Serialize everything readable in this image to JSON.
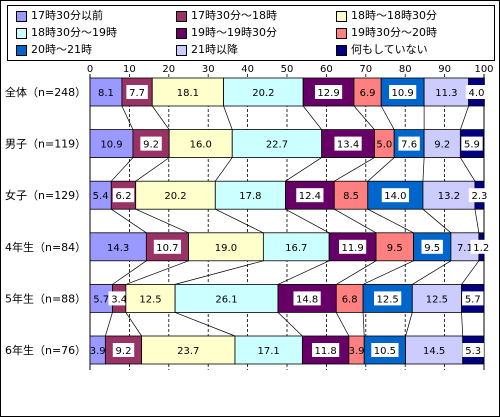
{
  "chart_data": {
    "type": "bar",
    "orientation": "horizontal",
    "stacked": true,
    "categories": [
      "全体（n=248）",
      "男子（n=119）",
      "女子（n=129）",
      "4年生（n=84）",
      "5年生（n=88）",
      "6年生（n=76）"
    ],
    "category_labels": [
      "全体（n=248）",
      "男子（n=119）",
      "女子（n=129）",
      "4年生（n=84）",
      "5年生（n=88）",
      "6年生（n=76）"
    ],
    "xlim": [
      0,
      100
    ],
    "xticks": [
      "0",
      "10",
      "20",
      "30",
      "40",
      "50",
      "60",
      "70",
      "80",
      "90",
      "100"
    ],
    "grid": "vertical-dashed",
    "legend_position": "top",
    "series": [
      {
        "name": "17時30分以前",
        "color": "#9999ff",
        "values": [
          8.1,
          10.9,
          5.4,
          14.3,
          5.7,
          3.9
        ],
        "labels": [
          "8.1",
          "10.9",
          "5.4",
          "14.3",
          "5.7",
          "3.9"
        ]
      },
      {
        "name": "17時30分～18時",
        "color": "#993366",
        "values": [
          7.7,
          9.2,
          6.2,
          10.7,
          3.4,
          9.2
        ],
        "labels": [
          "7.7",
          "9.2",
          "6.2",
          "10.7",
          "3.4",
          "9.2"
        ]
      },
      {
        "name": "18時～18時30分",
        "color": "#ffffcc",
        "values": [
          18.1,
          16.0,
          20.2,
          19.0,
          12.5,
          23.7
        ],
        "labels": [
          "18.1",
          "16.0",
          "20.2",
          "19.0",
          "12.5",
          "23.7"
        ]
      },
      {
        "name": "18時30分～19時",
        "color": "#ccffff",
        "values": [
          20.2,
          22.7,
          17.8,
          16.7,
          26.1,
          17.1
        ],
        "labels": [
          "20.2",
          "22.7",
          "17.8",
          "16.7",
          "26.1",
          "17.1"
        ]
      },
      {
        "name": "19時～19時30分",
        "color": "#660066",
        "values": [
          12.9,
          13.4,
          12.4,
          11.9,
          14.8,
          11.8
        ],
        "labels": [
          "12.9",
          "13.4",
          "12.4",
          "11.9",
          "14.8",
          "11.8"
        ]
      },
      {
        "name": "19時30分～20時",
        "color": "#ff8080",
        "values": [
          6.9,
          5.0,
          8.5,
          9.5,
          6.8,
          3.9
        ],
        "labels": [
          "6.9",
          "5.0",
          "8.5",
          "9.5",
          "6.8",
          "3.9"
        ]
      },
      {
        "name": "20時～21時",
        "color": "#0066cc",
        "values": [
          10.9,
          7.6,
          14.0,
          9.5,
          12.5,
          10.5
        ],
        "labels": [
          "10.9",
          "7.6",
          "14.0",
          "9.5",
          "12.5",
          "10.5"
        ]
      },
      {
        "name": "21時以降",
        "color": "#ccccff",
        "values": [
          11.3,
          9.2,
          13.2,
          7.1,
          12.5,
          14.5
        ],
        "labels": [
          "11.3",
          "9.2",
          "13.2",
          "7.1",
          "12.5",
          "14.5"
        ]
      },
      {
        "name": "何もしていない",
        "color": "#000080",
        "values": [
          4.0,
          5.9,
          2.3,
          1.2,
          5.7,
          5.3
        ],
        "labels": [
          "4.0",
          "5.9",
          "2.3",
          "1.2",
          "5.7",
          "5.3"
        ]
      }
    ]
  }
}
